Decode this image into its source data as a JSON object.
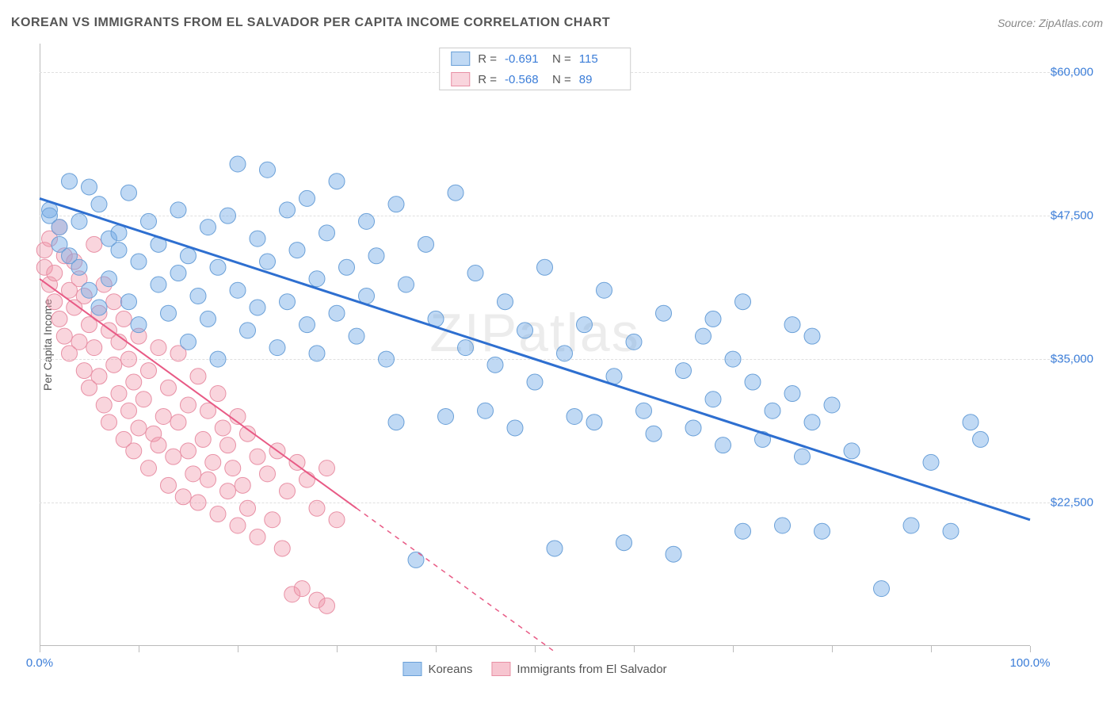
{
  "header": {
    "title": "KOREAN VS IMMIGRANTS FROM EL SALVADOR PER CAPITA INCOME CORRELATION CHART",
    "source": "Source: ZipAtlas.com"
  },
  "watermark": "ZIPatlas",
  "chart": {
    "type": "scatter",
    "ylabel": "Per Capita Income",
    "xlim": [
      0,
      100
    ],
    "ylim": [
      10000,
      62500
    ],
    "xtick_positions": [
      0,
      10,
      20,
      30,
      40,
      50,
      60,
      70,
      80,
      90,
      100
    ],
    "xtick_labels": {
      "0": "0.0%",
      "100": "100.0%"
    },
    "ytick_positions": [
      22500,
      35000,
      47500,
      60000
    ],
    "ytick_labels": {
      "22500": "$22,500",
      "35000": "$35,000",
      "47500": "$47,500",
      "60000": "$60,000"
    },
    "background": "#ffffff",
    "grid_color": "#e0e0e0",
    "axis_color": "#bbbbbb",
    "tick_label_color": "#3b7dd8",
    "series": [
      {
        "name": "Koreans",
        "color_fill": "rgba(115,170,230,0.45)",
        "color_stroke": "#6aa0d8",
        "trend_color": "#2e6fd0",
        "trend_width": 3,
        "trend_dash": "none",
        "R": "-0.691",
        "N": "115",
        "marker_radius": 10,
        "trendline": {
          "x1": 0,
          "y1": 49000,
          "x2": 100,
          "y2": 21000
        },
        "points": [
          [
            1,
            48000
          ],
          [
            1,
            47500
          ],
          [
            2,
            46500
          ],
          [
            2,
            45000
          ],
          [
            3,
            50500
          ],
          [
            3,
            44000
          ],
          [
            4,
            47000
          ],
          [
            4,
            43000
          ],
          [
            5,
            50000
          ],
          [
            5,
            41000
          ],
          [
            6,
            48500
          ],
          [
            6,
            39500
          ],
          [
            7,
            45500
          ],
          [
            7,
            42000
          ],
          [
            8,
            44500
          ],
          [
            8,
            46000
          ],
          [
            9,
            40000
          ],
          [
            9,
            49500
          ],
          [
            10,
            43500
          ],
          [
            10,
            38000
          ],
          [
            11,
            47000
          ],
          [
            12,
            41500
          ],
          [
            12,
            45000
          ],
          [
            13,
            39000
          ],
          [
            14,
            48000
          ],
          [
            14,
            42500
          ],
          [
            15,
            36500
          ],
          [
            15,
            44000
          ],
          [
            16,
            40500
          ],
          [
            17,
            46500
          ],
          [
            17,
            38500
          ],
          [
            18,
            43000
          ],
          [
            18,
            35000
          ],
          [
            19,
            47500
          ],
          [
            20,
            41000
          ],
          [
            20,
            52000
          ],
          [
            21,
            37500
          ],
          [
            22,
            45500
          ],
          [
            22,
            39500
          ],
          [
            23,
            43500
          ],
          [
            23,
            51500
          ],
          [
            24,
            36000
          ],
          [
            25,
            48000
          ],
          [
            25,
            40000
          ],
          [
            26,
            44500
          ],
          [
            27,
            38000
          ],
          [
            27,
            49000
          ],
          [
            28,
            42000
          ],
          [
            28,
            35500
          ],
          [
            29,
            46000
          ],
          [
            30,
            39000
          ],
          [
            30,
            50500
          ],
          [
            31,
            43000
          ],
          [
            32,
            37000
          ],
          [
            33,
            47000
          ],
          [
            33,
            40500
          ],
          [
            34,
            44000
          ],
          [
            35,
            35000
          ],
          [
            36,
            48500
          ],
          [
            36,
            29500
          ],
          [
            37,
            41500
          ],
          [
            38,
            17500
          ],
          [
            39,
            45000
          ],
          [
            40,
            38500
          ],
          [
            41,
            30000
          ],
          [
            42,
            49500
          ],
          [
            43,
            36000
          ],
          [
            44,
            42500
          ],
          [
            45,
            30500
          ],
          [
            46,
            34500
          ],
          [
            47,
            40000
          ],
          [
            48,
            29000
          ],
          [
            49,
            37500
          ],
          [
            50,
            33000
          ],
          [
            51,
            43000
          ],
          [
            52,
            18500
          ],
          [
            53,
            35500
          ],
          [
            54,
            30000
          ],
          [
            55,
            38000
          ],
          [
            56,
            29500
          ],
          [
            57,
            41000
          ],
          [
            58,
            33500
          ],
          [
            59,
            19000
          ],
          [
            60,
            36500
          ],
          [
            61,
            30500
          ],
          [
            62,
            28500
          ],
          [
            63,
            39000
          ],
          [
            64,
            18000
          ],
          [
            65,
            34000
          ],
          [
            66,
            29000
          ],
          [
            67,
            37000
          ],
          [
            68,
            31500
          ],
          [
            69,
            27500
          ],
          [
            70,
            35000
          ],
          [
            71,
            20000
          ],
          [
            72,
            33000
          ],
          [
            73,
            28000
          ],
          [
            74,
            30500
          ],
          [
            75,
            20500
          ],
          [
            76,
            32000
          ],
          [
            77,
            26500
          ],
          [
            78,
            29500
          ],
          [
            79,
            20000
          ],
          [
            80,
            31000
          ],
          [
            82,
            27000
          ],
          [
            76,
            38000
          ],
          [
            78,
            37000
          ],
          [
            85,
            15000
          ],
          [
            88,
            20500
          ],
          [
            90,
            26000
          ],
          [
            92,
            20000
          ],
          [
            94,
            29500
          ],
          [
            95,
            28000
          ],
          [
            68,
            38500
          ],
          [
            71,
            40000
          ]
        ]
      },
      {
        "name": "Immigrants from El Salvador",
        "color_fill": "rgba(240,150,170,0.40)",
        "color_stroke": "#e890a5",
        "trend_color": "#e85a85",
        "trend_width": 2,
        "trend_dash": "solid_then_dash",
        "R": "-0.568",
        "N": "89",
        "marker_radius": 10,
        "trendline_solid": {
          "x1": 0,
          "y1": 42000,
          "x2": 32,
          "y2": 22000
        },
        "trendline_dash": {
          "x1": 32,
          "y1": 22000,
          "x2": 52,
          "y2": 9500
        },
        "points": [
          [
            0.5,
            44500
          ],
          [
            0.5,
            43000
          ],
          [
            1,
            45500
          ],
          [
            1,
            41500
          ],
          [
            1.5,
            40000
          ],
          [
            1.5,
            42500
          ],
          [
            2,
            46500
          ],
          [
            2,
            38500
          ],
          [
            2.5,
            44000
          ],
          [
            2.5,
            37000
          ],
          [
            3,
            41000
          ],
          [
            3,
            35500
          ],
          [
            3.5,
            43500
          ],
          [
            3.5,
            39500
          ],
          [
            4,
            36500
          ],
          [
            4,
            42000
          ],
          [
            4.5,
            34000
          ],
          [
            4.5,
            40500
          ],
          [
            5,
            38000
          ],
          [
            5,
            32500
          ],
          [
            5.5,
            45000
          ],
          [
            5.5,
            36000
          ],
          [
            6,
            33500
          ],
          [
            6,
            39000
          ],
          [
            6.5,
            31000
          ],
          [
            6.5,
            41500
          ],
          [
            7,
            37500
          ],
          [
            7,
            29500
          ],
          [
            7.5,
            34500
          ],
          [
            7.5,
            40000
          ],
          [
            8,
            32000
          ],
          [
            8,
            36500
          ],
          [
            8.5,
            28000
          ],
          [
            8.5,
            38500
          ],
          [
            9,
            30500
          ],
          [
            9,
            35000
          ],
          [
            9.5,
            27000
          ],
          [
            9.5,
            33000
          ],
          [
            10,
            37000
          ],
          [
            10,
            29000
          ],
          [
            10.5,
            31500
          ],
          [
            11,
            25500
          ],
          [
            11,
            34000
          ],
          [
            11.5,
            28500
          ],
          [
            12,
            36000
          ],
          [
            12,
            27500
          ],
          [
            12.5,
            30000
          ],
          [
            13,
            24000
          ],
          [
            13,
            32500
          ],
          [
            13.5,
            26500
          ],
          [
            14,
            35500
          ],
          [
            14,
            29500
          ],
          [
            14.5,
            23000
          ],
          [
            15,
            31000
          ],
          [
            15,
            27000
          ],
          [
            15.5,
            25000
          ],
          [
            16,
            33500
          ],
          [
            16,
            22500
          ],
          [
            16.5,
            28000
          ],
          [
            17,
            30500
          ],
          [
            17,
            24500
          ],
          [
            17.5,
            26000
          ],
          [
            18,
            32000
          ],
          [
            18,
            21500
          ],
          [
            18.5,
            29000
          ],
          [
            19,
            23500
          ],
          [
            19,
            27500
          ],
          [
            19.5,
            25500
          ],
          [
            20,
            30000
          ],
          [
            20,
            20500
          ],
          [
            20.5,
            24000
          ],
          [
            21,
            28500
          ],
          [
            21,
            22000
          ],
          [
            22,
            26500
          ],
          [
            22,
            19500
          ],
          [
            23,
            25000
          ],
          [
            23.5,
            21000
          ],
          [
            24,
            27000
          ],
          [
            24.5,
            18500
          ],
          [
            25,
            23500
          ],
          [
            25.5,
            14500
          ],
          [
            26,
            26000
          ],
          [
            26.5,
            15000
          ],
          [
            27,
            24500
          ],
          [
            28,
            22000
          ],
          [
            28,
            14000
          ],
          [
            29,
            25500
          ],
          [
            30,
            21000
          ],
          [
            29,
            13500
          ]
        ]
      }
    ],
    "legend_bottom": [
      {
        "label": "Koreans",
        "fill": "rgba(115,170,230,0.6)",
        "stroke": "#6aa0d8"
      },
      {
        "label": "Immigrants from El Salvador",
        "fill": "rgba(240,150,170,0.55)",
        "stroke": "#e890a5"
      }
    ]
  }
}
